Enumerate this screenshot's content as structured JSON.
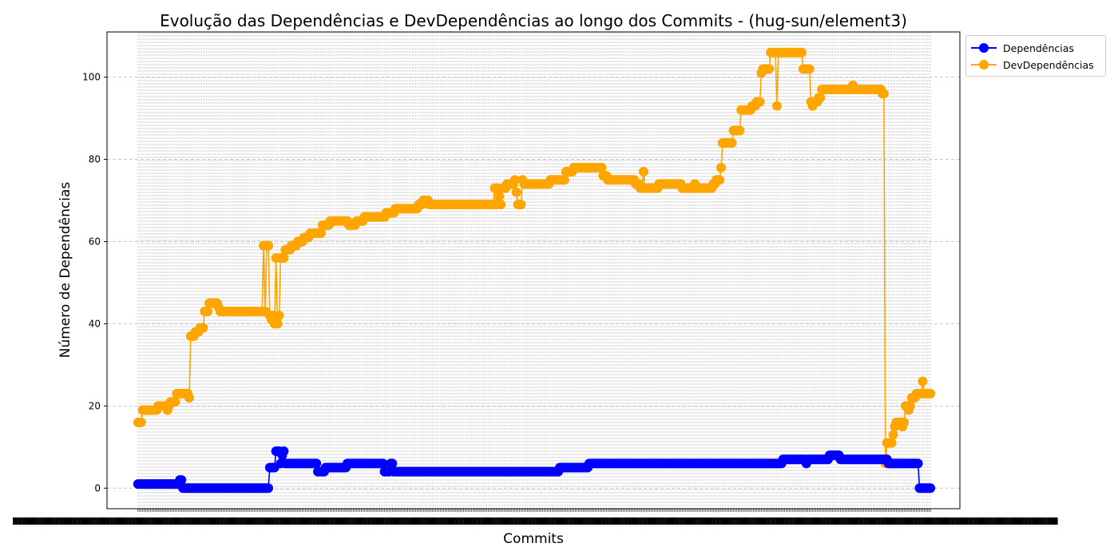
{
  "chart_data": {
    "type": "line",
    "title": "Evolução das Dependências e DevDependências ao longo dos Commits - (hug-sun/element3)",
    "xlabel": "Commits",
    "ylabel": "Número de Dependências",
    "yticks": [
      0,
      20,
      40,
      60,
      80,
      100
    ],
    "ylim": [
      -5,
      111
    ],
    "xlim": [
      -20,
      530
    ],
    "n_commits": 512,
    "grid": "dashed, x and y",
    "legend_position": "outside top-right",
    "series": [
      {
        "name": "Dependências",
        "color": "#0000ff",
        "points": [
          [
            0,
            1
          ],
          [
            26,
            1
          ],
          [
            27,
            2
          ],
          [
            28,
            2
          ],
          [
            29,
            0
          ],
          [
            84,
            0
          ],
          [
            85,
            5
          ],
          [
            88,
            5
          ],
          [
            89,
            9
          ],
          [
            91,
            9
          ],
          [
            92,
            6
          ],
          [
            94,
            9
          ],
          [
            95,
            6
          ],
          [
            115,
            6
          ],
          [
            116,
            4
          ],
          [
            120,
            4
          ],
          [
            121,
            5
          ],
          [
            134,
            5
          ],
          [
            135,
            6
          ],
          [
            158,
            6
          ],
          [
            159,
            4
          ],
          [
            162,
            4
          ],
          [
            163,
            6
          ],
          [
            164,
            6
          ],
          [
            165,
            4
          ],
          [
            271,
            4
          ],
          [
            272,
            5
          ],
          [
            290,
            5
          ],
          [
            291,
            6
          ],
          [
            415,
            6
          ],
          [
            416,
            7
          ],
          [
            430,
            7
          ],
          [
            431,
            6
          ],
          [
            432,
            7
          ],
          [
            445,
            7
          ],
          [
            446,
            8
          ],
          [
            452,
            8
          ],
          [
            453,
            7
          ],
          [
            483,
            7
          ],
          [
            484,
            6
          ],
          [
            503,
            6
          ],
          [
            504,
            0
          ],
          [
            511,
            0
          ]
        ]
      },
      {
        "name": "DevDependências",
        "color": "#ffa500",
        "points": [
          [
            0,
            16
          ],
          [
            2,
            16
          ],
          [
            3,
            19
          ],
          [
            12,
            19
          ],
          [
            13,
            20
          ],
          [
            18,
            20
          ],
          [
            19,
            19
          ],
          [
            20,
            20
          ],
          [
            21,
            21
          ],
          [
            24,
            21
          ],
          [
            25,
            23
          ],
          [
            32,
            23
          ],
          [
            33,
            22
          ],
          [
            34,
            37
          ],
          [
            36,
            37
          ],
          [
            37,
            38
          ],
          [
            39,
            38
          ],
          [
            40,
            39
          ],
          [
            42,
            39
          ],
          [
            43,
            43
          ],
          [
            45,
            43
          ],
          [
            46,
            45
          ],
          [
            51,
            45
          ],
          [
            52,
            44
          ],
          [
            53,
            43
          ],
          [
            80,
            43
          ],
          [
            81,
            59
          ],
          [
            82,
            43
          ],
          [
            83,
            59
          ],
          [
            84,
            59
          ],
          [
            85,
            42
          ],
          [
            86,
            41
          ],
          [
            87,
            42
          ],
          [
            88,
            40
          ],
          [
            89,
            56
          ],
          [
            90,
            40
          ],
          [
            91,
            42
          ],
          [
            92,
            56
          ],
          [
            94,
            56
          ],
          [
            95,
            58
          ],
          [
            98,
            58
          ],
          [
            99,
            59
          ],
          [
            102,
            59
          ],
          [
            103,
            60
          ],
          [
            106,
            60
          ],
          [
            107,
            61
          ],
          [
            110,
            61
          ],
          [
            111,
            62
          ],
          [
            118,
            62
          ],
          [
            119,
            64
          ],
          [
            123,
            64
          ],
          [
            124,
            65
          ],
          [
            135,
            65
          ],
          [
            136,
            64
          ],
          [
            140,
            64
          ],
          [
            141,
            65
          ],
          [
            145,
            65
          ],
          [
            146,
            66
          ],
          [
            159,
            66
          ],
          [
            160,
            67
          ],
          [
            165,
            67
          ],
          [
            166,
            68
          ],
          [
            180,
            68
          ],
          [
            181,
            69
          ],
          [
            183,
            69
          ],
          [
            184,
            70
          ],
          [
            187,
            70
          ],
          [
            188,
            69
          ],
          [
            229,
            69
          ],
          [
            230,
            73
          ],
          [
            231,
            69
          ],
          [
            232,
            73
          ],
          [
            234,
            69
          ],
          [
            235,
            73
          ],
          [
            237,
            73
          ],
          [
            238,
            74
          ],
          [
            242,
            74
          ],
          [
            243,
            75
          ],
          [
            245,
            69
          ],
          [
            247,
            69
          ],
          [
            248,
            75
          ],
          [
            249,
            74
          ],
          [
            265,
            74
          ],
          [
            266,
            75
          ],
          [
            275,
            75
          ],
          [
            276,
            77
          ],
          [
            280,
            77
          ],
          [
            281,
            78
          ],
          [
            299,
            78
          ],
          [
            300,
            76
          ],
          [
            302,
            76
          ],
          [
            303,
            75
          ],
          [
            320,
            75
          ],
          [
            321,
            74
          ],
          [
            325,
            73
          ],
          [
            326,
            77
          ],
          [
            327,
            73
          ],
          [
            335,
            73
          ],
          [
            336,
            74
          ],
          [
            350,
            74
          ],
          [
            351,
            73
          ],
          [
            358,
            73
          ],
          [
            359,
            74
          ],
          [
            360,
            73
          ],
          [
            370,
            73
          ],
          [
            371,
            74
          ],
          [
            375,
            75
          ],
          [
            376,
            78
          ],
          [
            377,
            84
          ],
          [
            383,
            84
          ],
          [
            384,
            87
          ],
          [
            388,
            87
          ],
          [
            389,
            92
          ],
          [
            395,
            92
          ],
          [
            396,
            93
          ],
          [
            398,
            93
          ],
          [
            399,
            94
          ],
          [
            401,
            94
          ],
          [
            402,
            101
          ],
          [
            403,
            102
          ],
          [
            407,
            102
          ],
          [
            408,
            106
          ],
          [
            411,
            106
          ],
          [
            412,
            93
          ],
          [
            413,
            106
          ],
          [
            428,
            106
          ],
          [
            429,
            102
          ],
          [
            433,
            102
          ],
          [
            434,
            94
          ],
          [
            435,
            93
          ],
          [
            437,
            94
          ],
          [
            440,
            95
          ],
          [
            441,
            97
          ],
          [
            460,
            97
          ],
          [
            461,
            98
          ],
          [
            462,
            97
          ],
          [
            478,
            97
          ],
          [
            480,
            96
          ],
          [
            481,
            96
          ],
          [
            482,
            6
          ],
          [
            483,
            11
          ],
          [
            486,
            11
          ],
          [
            487,
            13
          ],
          [
            488,
            15
          ],
          [
            489,
            16
          ],
          [
            492,
            16
          ],
          [
            493,
            15
          ],
          [
            494,
            16
          ],
          [
            495,
            20
          ],
          [
            497,
            19
          ],
          [
            498,
            20
          ],
          [
            499,
            22
          ],
          [
            501,
            22
          ],
          [
            502,
            23
          ],
          [
            505,
            23
          ],
          [
            506,
            26
          ],
          [
            507,
            23
          ],
          [
            511,
            23
          ]
        ]
      }
    ]
  }
}
